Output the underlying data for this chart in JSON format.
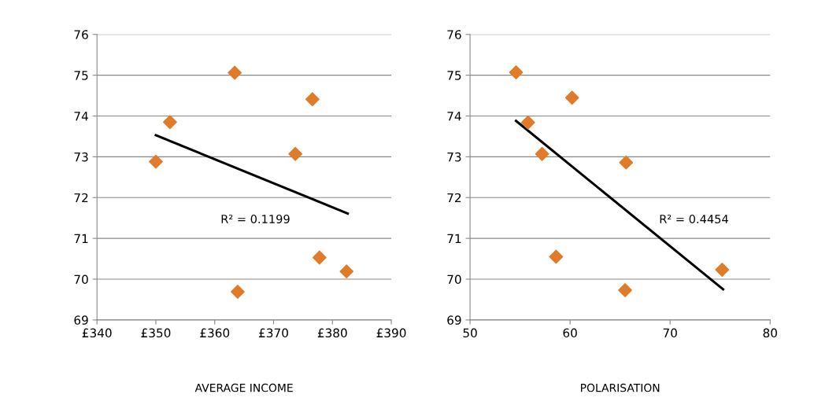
{
  "chart_data": [
    {
      "type": "scatter",
      "xlabel": "AVERAGE INCOME",
      "marker": "diamond",
      "grid": "y",
      "xlim": [
        340,
        390
      ],
      "xticks": [
        {
          "value": 340,
          "label": "£340"
        },
        {
          "value": 350,
          "label": "£350"
        },
        {
          "value": 360,
          "label": "£360"
        },
        {
          "value": 370,
          "label": "£370"
        },
        {
          "value": 380,
          "label": "£380"
        },
        {
          "value": 390,
          "label": "£390"
        }
      ],
      "ylim": [
        69,
        76
      ],
      "yticks": [
        69,
        70,
        71,
        72,
        73,
        74,
        75,
        76
      ],
      "series": [
        {
          "color": "#e07b2a",
          "x": [
            350.0,
            352.4,
            363.4,
            363.9,
            373.7,
            376.6,
            377.8,
            382.4
          ],
          "values": [
            72.88,
            73.85,
            75.06,
            69.69,
            73.07,
            74.41,
            70.53,
            70.19
          ]
        },
        {
          "type": "line",
          "color": "#000000",
          "marker": "none",
          "x": [
            350.0,
            382.6
          ],
          "values": [
            73.53,
            71.61
          ]
        }
      ],
      "annotations": [
        "R² = 0.1199"
      ]
    },
    {
      "type": "scatter",
      "xlabel": "POLARISATION",
      "marker": "diamond",
      "grid": "y",
      "xlim": [
        50,
        80
      ],
      "xticks": [
        50,
        60,
        70,
        80
      ],
      "ylim": [
        69,
        76
      ],
      "yticks": [
        69,
        70,
        71,
        72,
        73,
        74,
        75,
        76
      ],
      "series": [
        {
          "color": "#e07b2a",
          "x": [
            54.6,
            55.8,
            57.2,
            60.2,
            58.6,
            65.6,
            65.5,
            75.2
          ],
          "values": [
            75.07,
            73.84,
            73.07,
            74.45,
            70.55,
            72.86,
            69.73,
            70.23
          ]
        },
        {
          "type": "line",
          "color": "#000000",
          "marker": "none",
          "x": [
            54.6,
            75.3
          ],
          "values": [
            73.88,
            69.75
          ]
        }
      ],
      "annotations": [
        "R² = 0.4454"
      ]
    }
  ]
}
